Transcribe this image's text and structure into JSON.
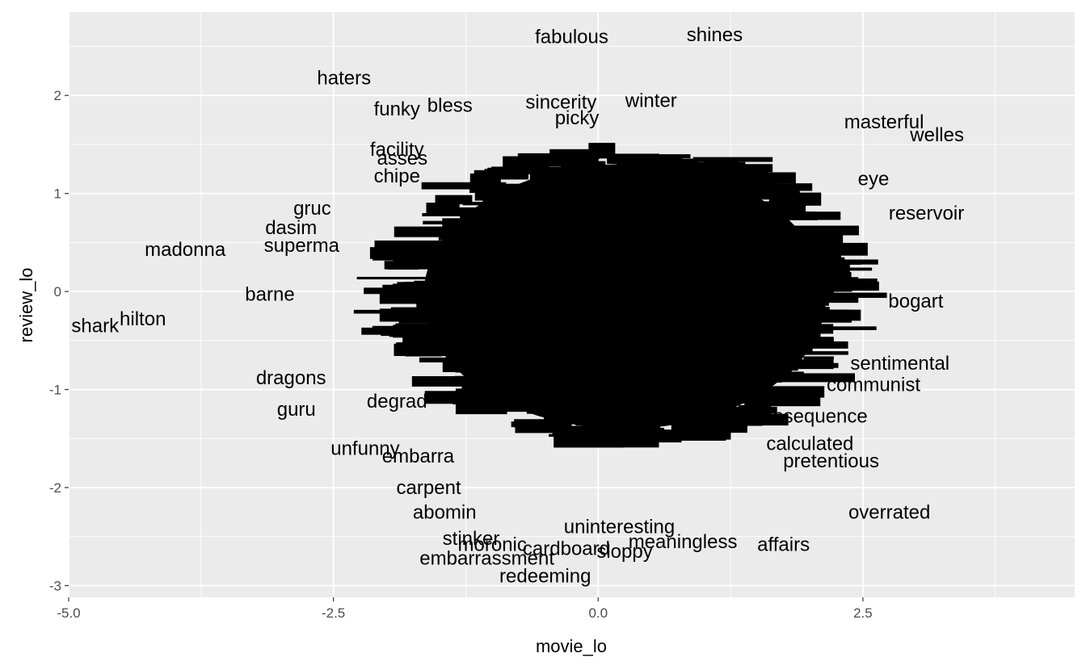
{
  "chart_data": {
    "type": "scatter",
    "xlabel": "movie_lo",
    "ylabel": "review_lo",
    "xlim": [
      -5.0,
      4.5
    ],
    "ylim": [
      -3.12,
      2.85
    ],
    "x_ticks": [
      -5.0,
      -2.5,
      0.0,
      2.5
    ],
    "x_tick_labels": [
      "-5.0",
      "-2.5",
      "0.0",
      "2.5"
    ],
    "y_ticks": [
      -3,
      -2,
      -1,
      0,
      1,
      2
    ],
    "y_tick_labels": [
      "-3",
      "-2",
      "-1",
      "0",
      "1",
      "2"
    ],
    "grid": true,
    "panel_background": "#ebebeb",
    "grid_color": "#ffffff",
    "text_color": "#000000",
    "dense_core": {
      "center_x": 0.25,
      "center_y": -0.05,
      "radius_x": 1.9,
      "radius_y": 1.35
    },
    "labels": [
      {
        "text": "fabulous",
        "x": -0.25,
        "y": 2.6
      },
      {
        "text": "shines",
        "x": 1.1,
        "y": 2.62
      },
      {
        "text": "haters",
        "x": -2.4,
        "y": 2.18
      },
      {
        "text": "funky",
        "x": -1.9,
        "y": 1.86
      },
      {
        "text": "bless",
        "x": -1.4,
        "y": 1.9
      },
      {
        "text": "sincerity",
        "x": -0.35,
        "y": 1.93
      },
      {
        "text": "masterful",
        "x": 2.7,
        "y": 1.73
      },
      {
        "text": "welles",
        "x": 3.2,
        "y": 1.6
      },
      {
        "text": "facility",
        "x": -1.9,
        "y": 1.45
      },
      {
        "text": "asses",
        "x": -1.85,
        "y": 1.36
      },
      {
        "text": "chipe",
        "x": -1.9,
        "y": 1.18
      },
      {
        "text": "gruc",
        "x": -2.7,
        "y": 0.85
      },
      {
        "text": "dasim",
        "x": -2.9,
        "y": 0.65
      },
      {
        "text": "madonna",
        "x": -3.9,
        "y": 0.43
      },
      {
        "text": "superma",
        "x": -2.8,
        "y": 0.47
      },
      {
        "text": "barne",
        "x": -3.1,
        "y": -0.03
      },
      {
        "text": "hilton",
        "x": -4.3,
        "y": -0.28
      },
      {
        "text": "shark",
        "x": -4.75,
        "y": -0.35
      },
      {
        "text": "dragons",
        "x": -2.9,
        "y": -0.88
      },
      {
        "text": "guru",
        "x": -2.85,
        "y": -1.2
      },
      {
        "text": "degrad",
        "x": -1.9,
        "y": -1.12
      },
      {
        "text": "unfunny",
        "x": -2.2,
        "y": -1.6
      },
      {
        "text": "embarra",
        "x": -1.7,
        "y": -1.68
      },
      {
        "text": "carpent",
        "x": -1.6,
        "y": -2.0
      },
      {
        "text": "abomin",
        "x": -1.45,
        "y": -2.25
      },
      {
        "text": "stinker",
        "x": -1.2,
        "y": -2.52
      },
      {
        "text": "moronic",
        "x": -1.0,
        "y": -2.58
      },
      {
        "text": "embarrassment",
        "x": -1.05,
        "y": -2.72
      },
      {
        "text": "redeeming",
        "x": -0.5,
        "y": -2.9
      },
      {
        "text": "cardboard",
        "x": -0.3,
        "y": -2.62
      },
      {
        "text": "sloppy",
        "x": 0.25,
        "y": -2.65
      },
      {
        "text": "meaningless",
        "x": 0.8,
        "y": -2.55
      },
      {
        "text": "uninteresting",
        "x": 0.2,
        "y": -2.4
      },
      {
        "text": "affairs",
        "x": 1.75,
        "y": -2.58
      },
      {
        "text": "overrated",
        "x": 2.75,
        "y": -2.25
      },
      {
        "text": "pretentious",
        "x": 2.2,
        "y": -1.73
      },
      {
        "text": "calculated",
        "x": 2.0,
        "y": -1.55
      },
      {
        "text": "consequence",
        "x": 2.0,
        "y": -1.27
      },
      {
        "text": "communist",
        "x": 2.6,
        "y": -0.95
      },
      {
        "text": "sentimental",
        "x": 2.85,
        "y": -0.73
      },
      {
        "text": "bogart",
        "x": 3.0,
        "y": -0.1
      },
      {
        "text": "reservoir",
        "x": 3.1,
        "y": 0.8
      },
      {
        "text": "eye",
        "x": 2.6,
        "y": 1.15
      },
      {
        "text": "winter",
        "x": 0.5,
        "y": 1.95
      },
      {
        "text": "picky",
        "x": -0.2,
        "y": 1.77
      }
    ]
  }
}
